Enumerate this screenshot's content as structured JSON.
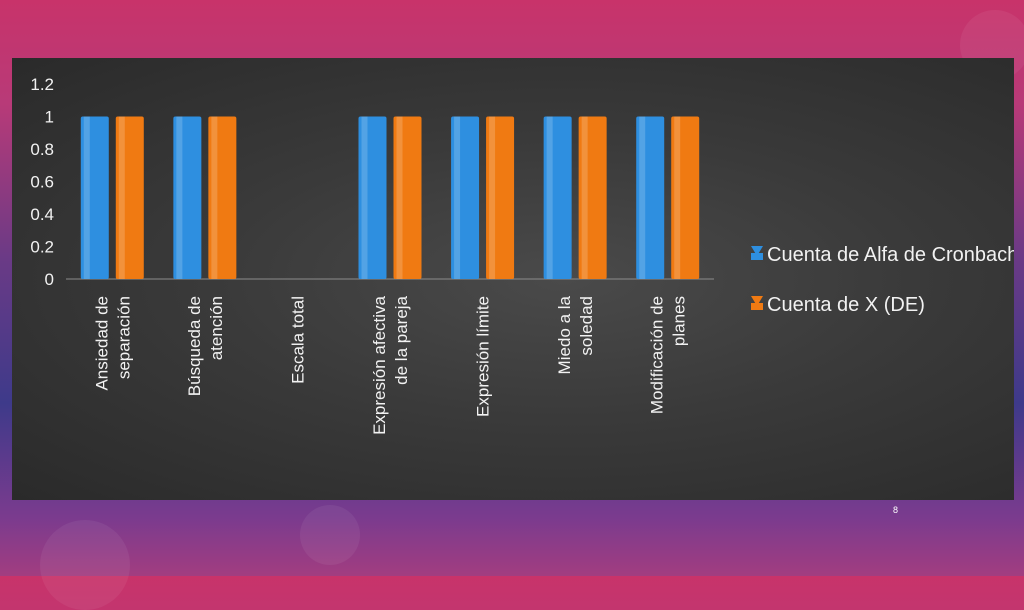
{
  "slide": {
    "number": "8"
  },
  "chart_data": {
    "type": "bar",
    "categories": [
      [
        "Ansiedad de",
        "separación"
      ],
      [
        "Búsqueda de",
        "atención"
      ],
      [
        "Escala total"
      ],
      [
        "Expresión afectiva",
        "de la pareja"
      ],
      [
        "Expresión límite"
      ],
      [
        "Miedo a la",
        "soledad"
      ],
      [
        "Modificación de",
        "planes"
      ]
    ],
    "series": [
      {
        "name": "Cuenta de Alfa de Cronbach",
        "color": "#2e8fe0",
        "values": [
          1,
          1,
          null,
          1,
          1,
          1,
          1
        ]
      },
      {
        "name": "Cuenta de X (DE)",
        "color": "#f07a12",
        "values": [
          1,
          1,
          null,
          1,
          1,
          1,
          1
        ]
      }
    ],
    "yticks": [
      "0",
      "0.2",
      "0.4",
      "0.6",
      "0.8",
      "1",
      "1.2"
    ],
    "ylim": [
      0,
      1.2
    ],
    "legend_position": "right",
    "grid": false
  }
}
